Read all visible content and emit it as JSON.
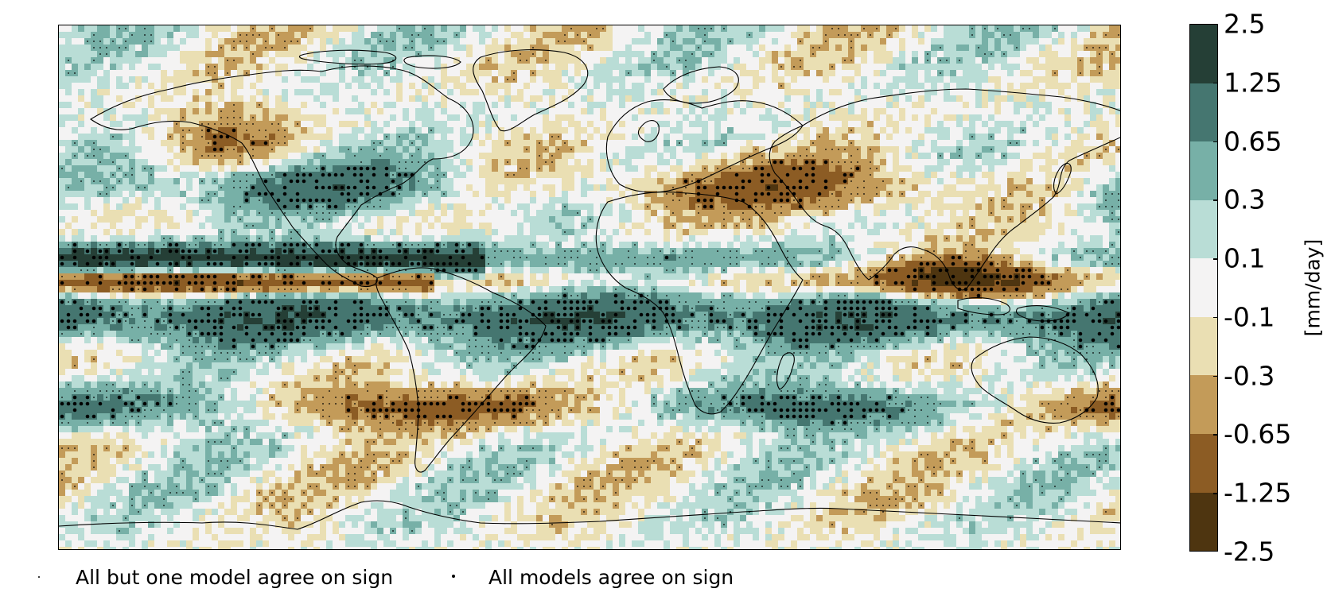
{
  "colorbar": {
    "ticks": [
      "2.5",
      "1.25",
      "0.65",
      "0.3",
      "0.1",
      "-0.1",
      "-0.3",
      "-0.65",
      "-1.25",
      "-2.5"
    ],
    "colors": [
      "#253f36",
      "#457670",
      "#77b0a7",
      "#b9ddd6",
      "#f4f3f3",
      "#eadfb3",
      "#c39b59",
      "#8c5c24",
      "#4e3510"
    ],
    "unit": "[mm/day]"
  },
  "legend": [
    {
      "label": "All but one model agree on sign",
      "marker": "small-dot"
    },
    {
      "label": "All models agree on sign",
      "marker": "large-dot"
    }
  ],
  "map": {
    "projection": "plate-carree",
    "coastlines": true,
    "variable_colors": {
      "ocean_background": "#f4f3f3",
      "coastline": "#000000"
    }
  }
}
